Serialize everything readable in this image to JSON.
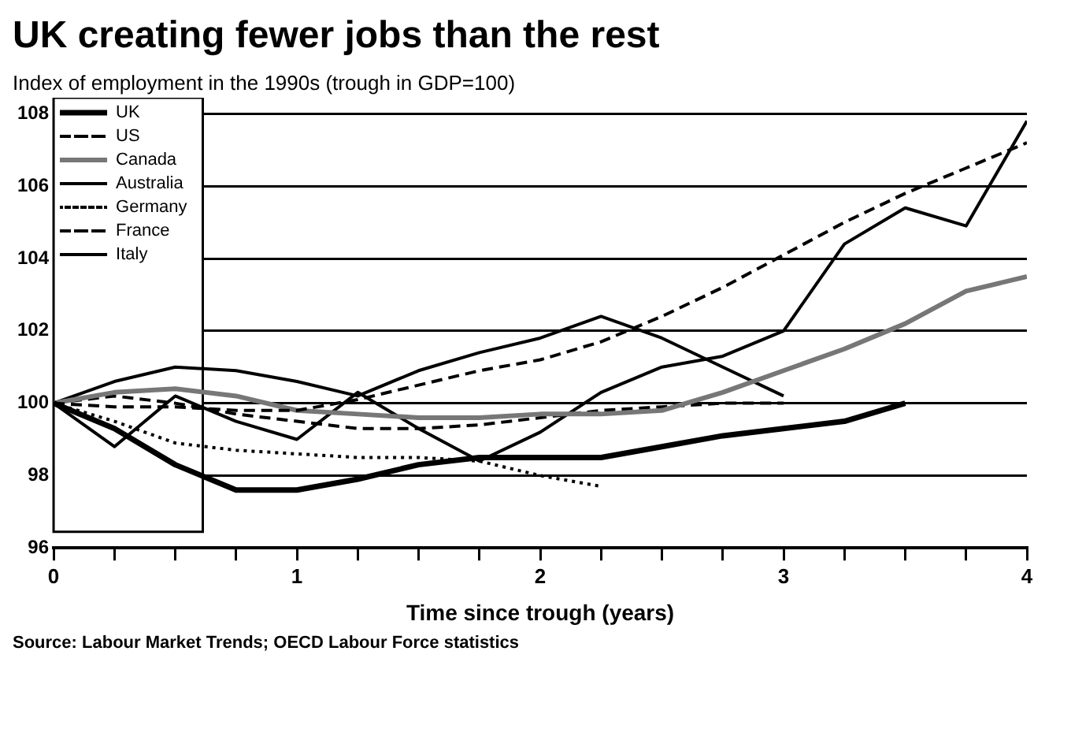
{
  "chart_data": {
    "type": "line",
    "title": "UK creating fewer jobs than the rest",
    "subtitle": "Index of employment in the 1990s (trough in GDP=100)",
    "xlabel": "Time since trough (years)",
    "annotations": [
      "Source: Labour Market Trends; OECD Labour Force statistics"
    ],
    "x": [
      0,
      0.25,
      0.5,
      0.75,
      1,
      1.25,
      1.5,
      1.75,
      2,
      2.25,
      2.5,
      2.75,
      3,
      3.25,
      3.5,
      3.75,
      4
    ],
    "series": [
      {
        "name": "UK",
        "color": "#000000",
        "line_style": "solid",
        "values": [
          100,
          99.3,
          98.3,
          97.6,
          97.6,
          97.9,
          98.3,
          98.5,
          98.5,
          98.5,
          98.8,
          99.1,
          99.3,
          99.5,
          100,
          null,
          null
        ]
      },
      {
        "name": "US",
        "color": "#000000",
        "line_style": "dashed",
        "values": [
          100,
          99.9,
          99.9,
          99.8,
          99.8,
          100.1,
          100.5,
          100.9,
          101.2,
          101.7,
          102.4,
          103.2,
          104.1,
          105,
          105.8,
          106.5,
          107.2
        ]
      },
      {
        "name": "Canada",
        "color": "#777777",
        "line_style": "solid",
        "values": [
          100,
          100.3,
          100.4,
          100.2,
          99.8,
          99.7,
          99.6,
          99.6,
          99.7,
          99.7,
          99.8,
          100.3,
          100.9,
          101.5,
          102.2,
          103.1,
          103.5
        ]
      },
      {
        "name": "Australia",
        "color": "#000000",
        "line_style": "solid",
        "values": [
          100,
          98.8,
          100.2,
          99.5,
          99,
          100.3,
          99.3,
          98.4,
          99.2,
          100.3,
          101,
          101.3,
          102,
          104.4,
          105.4,
          104.9,
          107.8
        ]
      },
      {
        "name": "Germany",
        "color": "#000000",
        "line_style": "dotted",
        "values": [
          100,
          99.5,
          98.9,
          98.7,
          98.6,
          98.5,
          98.5,
          98.4,
          98,
          97.7,
          null,
          null,
          null,
          null,
          null,
          null,
          null
        ]
      },
      {
        "name": "France",
        "color": "#000000",
        "line_style": "dashed",
        "values": [
          100,
          100.2,
          100,
          99.7,
          99.5,
          99.3,
          99.3,
          99.4,
          99.6,
          99.8,
          99.9,
          100,
          100,
          null,
          null,
          null,
          null
        ]
      },
      {
        "name": "Italy",
        "color": "#000000",
        "line_style": "solid",
        "values": [
          100,
          100.6,
          101,
          100.9,
          100.6,
          100.2,
          100.9,
          101.4,
          101.8,
          102.4,
          101.8,
          101,
          100.2,
          null,
          null,
          null,
          null
        ]
      }
    ],
    "xlim": [
      0,
      4
    ],
    "xticks": [
      0,
      {
        "value": 0.25,
        "label": null
      },
      {
        "value": 0.5,
        "label": null
      },
      {
        "value": 0.75,
        "label": null
      },
      1,
      {
        "value": 1.25,
        "label": null
      },
      {
        "value": 1.5,
        "label": null
      },
      {
        "value": 1.75,
        "label": null
      },
      2,
      {
        "value": 2.25,
        "label": null
      },
      {
        "value": 2.5,
        "label": null
      },
      {
        "value": 2.75,
        "label": null
      },
      3,
      {
        "value": 3.25,
        "label": null
      },
      {
        "value": 3.5,
        "label": null
      },
      {
        "value": 3.75,
        "label": null
      },
      4
    ],
    "ylim": [
      96,
      108
    ],
    "yticks": [
      96,
      98,
      100,
      102,
      104,
      106,
      108
    ],
    "grid": "y",
    "legend": "top left",
    "marker": "none"
  }
}
